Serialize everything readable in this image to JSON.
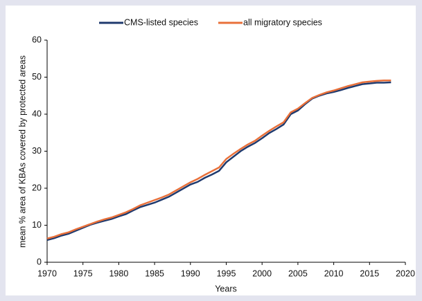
{
  "chart_data": {
    "type": "line",
    "x_label": "Years",
    "y_label": "mean % area of KBAs covered by protected areas",
    "x": [
      1970,
      1971,
      1972,
      1973,
      1974,
      1975,
      1976,
      1977,
      1978,
      1979,
      1980,
      1981,
      1982,
      1983,
      1984,
      1985,
      1986,
      1987,
      1988,
      1989,
      1990,
      1991,
      1992,
      1993,
      1994,
      1995,
      1996,
      1997,
      1998,
      1999,
      2000,
      2001,
      2002,
      2003,
      2004,
      2005,
      2006,
      2007,
      2008,
      2009,
      2010,
      2011,
      2012,
      2013,
      2014,
      2015,
      2016,
      2017,
      2018
    ],
    "series": [
      {
        "name": "CMS-listed species",
        "color": "#1f3a6e",
        "values": [
          6.0,
          6.5,
          7.2,
          7.7,
          8.5,
          9.3,
          10.1,
          10.7,
          11.2,
          11.7,
          12.4,
          13.0,
          14.0,
          14.9,
          15.5,
          16.1,
          16.9,
          17.7,
          18.8,
          19.9,
          21.0,
          21.7,
          22.8,
          23.7,
          24.7,
          27.0,
          28.5,
          30.0,
          31.2,
          32.2,
          33.5,
          34.9,
          36.0,
          37.2,
          40.0,
          41.0,
          42.7,
          44.2,
          45.0,
          45.6,
          46.0,
          46.5,
          47.1,
          47.6,
          48.1,
          48.3,
          48.5,
          48.5,
          48.6
        ]
      },
      {
        "name": "all migratory species",
        "color": "#e8703a",
        "values": [
          6.4,
          6.9,
          7.6,
          8.1,
          8.9,
          9.6,
          10.3,
          11.0,
          11.6,
          12.1,
          12.8,
          13.5,
          14.4,
          15.4,
          16.1,
          16.8,
          17.5,
          18.3,
          19.4,
          20.5,
          21.6,
          22.5,
          23.6,
          24.6,
          25.6,
          27.9,
          29.3,
          30.6,
          31.8,
          32.8,
          34.2,
          35.5,
          36.7,
          37.8,
          40.5,
          41.5,
          43.0,
          44.4,
          45.2,
          45.9,
          46.4,
          47.0,
          47.6,
          48.1,
          48.6,
          48.8,
          49.0,
          49.1,
          49.1
        ]
      }
    ],
    "xlim": [
      1970,
      2020
    ],
    "xticks": [
      1970,
      1975,
      1980,
      1985,
      1990,
      1995,
      2000,
      2005,
      2010,
      2015,
      2020
    ],
    "ylim": [
      0,
      60
    ],
    "yticks": [
      0,
      10,
      20,
      30,
      40,
      50,
      60
    ],
    "grid": false,
    "legend": "top"
  }
}
